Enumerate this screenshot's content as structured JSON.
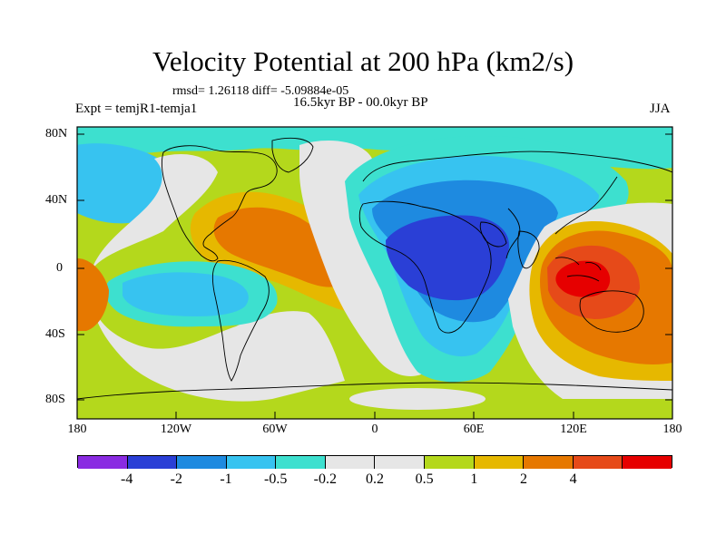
{
  "title": "Velocity Potential at 200 hPa (km2/s)",
  "stats": "rmsd= 1.26118 diff= -5.09884e-05",
  "experiment": "Expt = temjR1-temja1",
  "period": "16.5kyr BP - 00.0kyr BP",
  "season": "JJA",
  "axes": {
    "lat_labels": [
      "80N",
      "40N",
      "0",
      "40S",
      "80S"
    ],
    "lon_labels": [
      "180",
      "120W",
      "60W",
      "0",
      "60E",
      "120E",
      "180"
    ]
  },
  "colorbar": {
    "colors": [
      "#8a2be2",
      "#2a3fd6",
      "#1e8ae0",
      "#37c3f0",
      "#3de0cf",
      "#e6e6e6",
      "#e6e6e6",
      "#b4d81c",
      "#e6b800",
      "#e67800",
      "#e64a19",
      "#e60000"
    ],
    "labels": [
      "-4",
      "-2",
      "-1",
      "-0.5",
      "-0.2",
      "0.2",
      "0.5",
      "1",
      "2",
      "4"
    ]
  },
  "field_colors": {
    "background": "#b4d81c",
    "neutral": "#e6e6e6",
    "cyan": "#3de0cf",
    "light_blue": "#37c3f0",
    "mid_blue": "#1e8ae0",
    "dark_blue": "#2a3fd6",
    "orange_light": "#e6b800",
    "orange": "#e67800",
    "red_orange": "#e64a19",
    "red": "#e60000"
  }
}
